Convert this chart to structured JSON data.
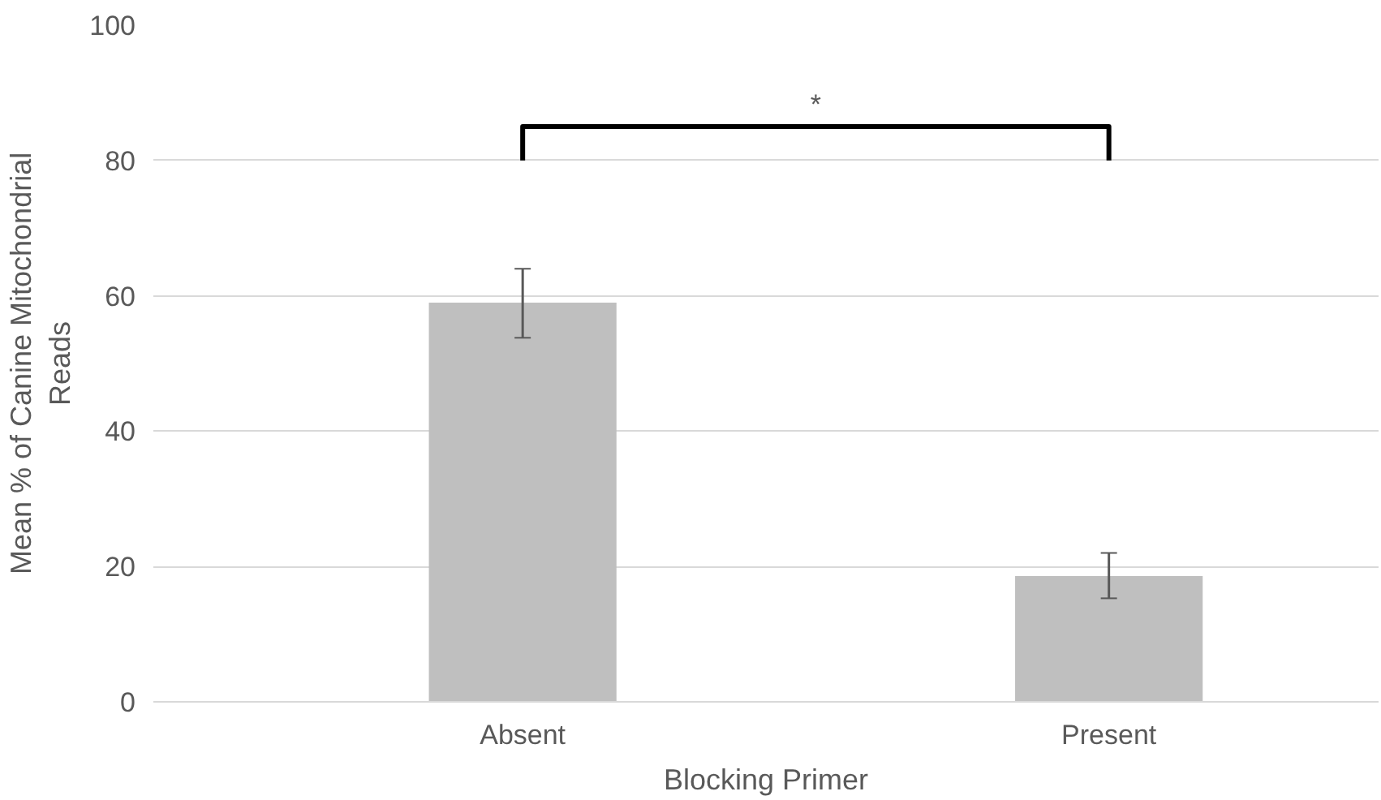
{
  "chart_data": {
    "type": "bar",
    "xlabel": "Blocking Primer",
    "ylabel": "Mean % of Canine Mitochondrial Reads",
    "categories": [
      "Absent",
      "Present"
    ],
    "values": [
      59,
      18.6
    ],
    "color": "#bfbfbf",
    "errors": [
      [
        53.8,
        64
      ],
      [
        15.3,
        22
      ]
    ],
    "ylim": [
      0,
      100
    ],
    "yticks": [
      0,
      20,
      40,
      60,
      80,
      100
    ],
    "grid": "y",
    "annotations": [
      "*"
    ]
  }
}
